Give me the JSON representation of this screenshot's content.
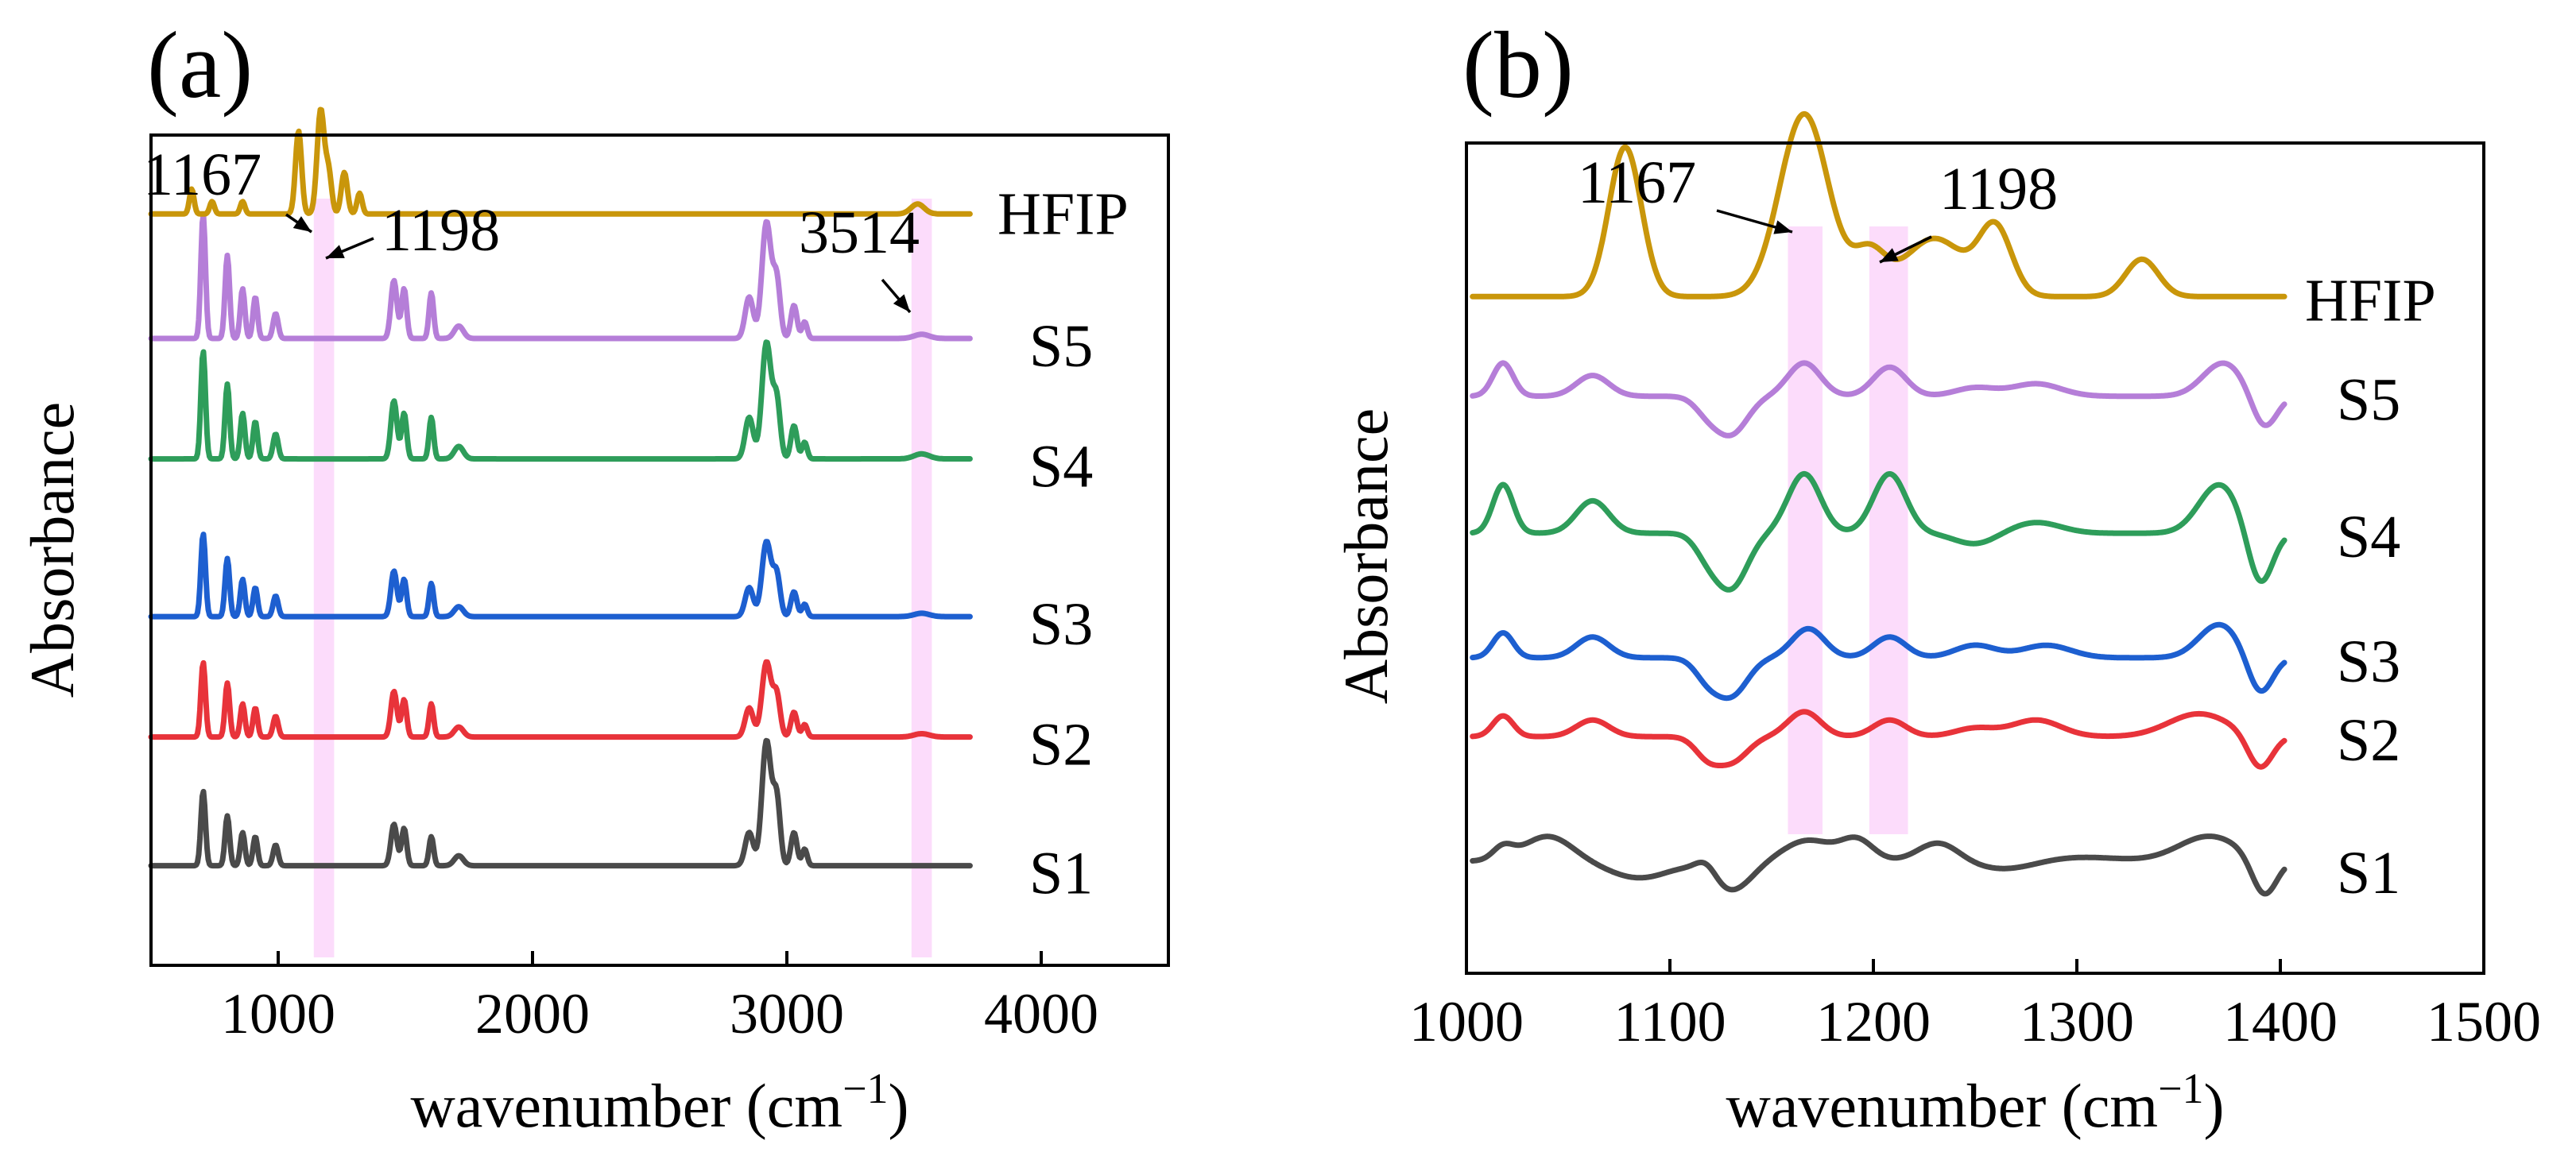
{
  "chart_data": [
    {
      "type": "line",
      "panel_label": "(a)",
      "xlabel": "wavenumber (cm",
      "xlabel_sup": "−1",
      "xlabel_close": ")",
      "ylabel": "Absorbance",
      "xlim": [
        500,
        4500
      ],
      "ylim": [
        0,
        1
      ],
      "xticks": [
        1000,
        2000,
        3000,
        4000
      ],
      "highlight_colour": "#fbd0f9",
      "highlight_bands": [
        [
          1140,
          1220
        ],
        [
          3490,
          3570
        ]
      ],
      "series": [
        {
          "name": "S1",
          "color": "#4a4a4a",
          "baseline": 0.12,
          "peaks": [
            [
              705,
              0.09,
              9
            ],
            [
              800,
              0.06,
              9
            ],
            [
              860,
              0.04,
              9
            ],
            [
              910,
              0.035,
              9
            ],
            [
              990,
              0.025,
              10
            ],
            [
              1455,
              0.05,
              12
            ],
            [
              1495,
              0.045,
              10
            ],
            [
              1602,
              0.035,
              9
            ],
            [
              1710,
              0.012,
              18
            ],
            [
              2852,
              0.04,
              16
            ],
            [
              2920,
              0.15,
              18
            ],
            [
              2960,
              0.08,
              14
            ],
            [
              3028,
              0.04,
              12
            ],
            [
              3070,
              0.02,
              10
            ]
          ]
        },
        {
          "name": "S2",
          "color": "#e8333a",
          "baseline": 0.275,
          "peaks": [
            [
              705,
              0.09,
              9
            ],
            [
              800,
              0.065,
              9
            ],
            [
              860,
              0.04,
              9
            ],
            [
              910,
              0.035,
              9
            ],
            [
              990,
              0.025,
              10
            ],
            [
              1455,
              0.055,
              12
            ],
            [
              1495,
              0.045,
              10
            ],
            [
              1602,
              0.04,
              9
            ],
            [
              1710,
              0.012,
              18
            ],
            [
              2852,
              0.035,
              16
            ],
            [
              2920,
              0.09,
              18
            ],
            [
              2960,
              0.05,
              14
            ],
            [
              3028,
              0.03,
              12
            ],
            [
              3070,
              0.015,
              10
            ],
            [
              3530,
              0.004,
              30
            ]
          ]
        },
        {
          "name": "S3",
          "color": "#1d5fd0",
          "baseline": 0.42,
          "peaks": [
            [
              705,
              0.1,
              9
            ],
            [
              800,
              0.07,
              9
            ],
            [
              860,
              0.045,
              9
            ],
            [
              910,
              0.035,
              9
            ],
            [
              990,
              0.025,
              10
            ],
            [
              1455,
              0.055,
              12
            ],
            [
              1495,
              0.045,
              10
            ],
            [
              1602,
              0.04,
              9
            ],
            [
              1710,
              0.012,
              18
            ],
            [
              2852,
              0.035,
              16
            ],
            [
              2920,
              0.09,
              18
            ],
            [
              2960,
              0.05,
              14
            ],
            [
              3028,
              0.03,
              12
            ],
            [
              3070,
              0.015,
              10
            ],
            [
              3530,
              0.004,
              30
            ]
          ]
        },
        {
          "name": "S4",
          "color": "#2e9d5a",
          "baseline": 0.61,
          "peaks": [
            [
              705,
              0.13,
              9
            ],
            [
              800,
              0.09,
              9
            ],
            [
              860,
              0.055,
              9
            ],
            [
              910,
              0.045,
              9
            ],
            [
              990,
              0.03,
              10
            ],
            [
              1455,
              0.07,
              12
            ],
            [
              1495,
              0.055,
              10
            ],
            [
              1602,
              0.05,
              9
            ],
            [
              1710,
              0.015,
              18
            ],
            [
              2852,
              0.05,
              16
            ],
            [
              2920,
              0.14,
              18
            ],
            [
              2960,
              0.07,
              14
            ],
            [
              3028,
              0.04,
              12
            ],
            [
              3070,
              0.02,
              10
            ],
            [
              3530,
              0.006,
              30
            ]
          ]
        },
        {
          "name": "S5",
          "color": "#b57ed8",
          "baseline": 0.755,
          "peaks": [
            [
              705,
              0.15,
              9
            ],
            [
              800,
              0.1,
              9
            ],
            [
              860,
              0.06,
              9
            ],
            [
              910,
              0.05,
              9
            ],
            [
              990,
              0.03,
              10
            ],
            [
              1455,
              0.07,
              12
            ],
            [
              1495,
              0.06,
              10
            ],
            [
              1602,
              0.055,
              9
            ],
            [
              1710,
              0.015,
              18
            ],
            [
              2852,
              0.05,
              16
            ],
            [
              2920,
              0.14,
              18
            ],
            [
              2960,
              0.07,
              14
            ],
            [
              3028,
              0.04,
              12
            ],
            [
              3070,
              0.02,
              10
            ],
            [
              3530,
              0.005,
              30
            ]
          ]
        },
        {
          "name": "HFIP",
          "color": "#c9960a",
          "baseline": 0.905,
          "peaks": [
            [
              660,
              0.03,
              9
            ],
            [
              740,
              0.015,
              9
            ],
            [
              860,
              0.015,
              9
            ],
            [
              1080,
              0.1,
              12
            ],
            [
              1167,
              0.125,
              14
            ],
            [
              1198,
              0.05,
              12
            ],
            [
              1260,
              0.05,
              12
            ],
            [
              1320,
              0.025,
              10
            ],
            [
              3514,
              0.012,
              26
            ]
          ]
        }
      ],
      "annotations": [
        {
          "label": "1167",
          "x": 1167,
          "series": "HFIP"
        },
        {
          "label": "1198",
          "x": 1198,
          "series": "HFIP"
        },
        {
          "label": "3514",
          "x": 3514,
          "series": "HFIP"
        }
      ]
    },
    {
      "type": "line",
      "panel_label": "(b)",
      "xlabel": "wavenumber (cm",
      "xlabel_sup": "−1",
      "xlabel_close": ")",
      "ylabel": "Absorbance",
      "xlim": [
        1000,
        1500
      ],
      "ylim": [
        0,
        1
      ],
      "xticks": [
        1000,
        1100,
        1200,
        1300,
        1400,
        1500
      ],
      "x_data_range": [
        1003,
        1402
      ],
      "highlight_colour": "#fbd0f9",
      "highlight_bands": [
        [
          1158,
          1175
        ],
        [
          1198,
          1217
        ]
      ],
      "series": [
        {
          "name": "S1",
          "color": "#4a4a4a",
          "baseline": 0.135,
          "amp": 0.05,
          "peaks": [
            [
              1018,
              0.3,
              5
            ],
            [
              1040,
              0.6,
              12
            ],
            [
              1085,
              -0.4,
              15
            ],
            [
              1118,
              0.3,
              5
            ],
            [
              1130,
              -0.7,
              10
            ],
            [
              1168,
              0.5,
              12
            ],
            [
              1192,
              0.5,
              8
            ],
            [
              1232,
              0.45,
              10
            ],
            [
              1265,
              -0.2,
              15
            ],
            [
              1300,
              0.1,
              20
            ],
            [
              1365,
              0.6,
              15
            ],
            [
              1392,
              -0.9,
              6
            ]
          ]
        },
        {
          "name": "S2",
          "color": "#e8333a",
          "baseline": 0.285,
          "amp": 0.05,
          "peaks": [
            [
              1018,
              0.5,
              5
            ],
            [
              1062,
              0.4,
              8
            ],
            [
              1118,
              -0.4,
              6
            ],
            [
              1130,
              -0.6,
              8
            ],
            [
              1166,
              0.6,
              8
            ],
            [
              1208,
              0.4,
              8
            ],
            [
              1250,
              0.2,
              10
            ],
            [
              1280,
              0.4,
              12
            ],
            [
              1360,
              0.55,
              15
            ],
            [
              1390,
              -0.8,
              6
            ]
          ]
        },
        {
          "name": "S3",
          "color": "#1d5fd0",
          "baseline": 0.38,
          "amp": 0.05,
          "peaks": [
            [
              1018,
              0.6,
              5
            ],
            [
              1062,
              0.5,
              8
            ],
            [
              1118,
              -0.4,
              6
            ],
            [
              1130,
              -0.9,
              8
            ],
            [
              1168,
              0.7,
              8
            ],
            [
              1208,
              0.5,
              8
            ],
            [
              1250,
              0.3,
              10
            ],
            [
              1285,
              0.3,
              12
            ],
            [
              1370,
              0.8,
              10
            ],
            [
              1390,
              -0.9,
              6
            ]
          ]
        },
        {
          "name": "S4",
          "color": "#2e9d5a",
          "baseline": 0.53,
          "amp": 0.065,
          "peaks": [
            [
              1018,
              0.9,
              5
            ],
            [
              1062,
              0.6,
              8
            ],
            [
              1118,
              -0.3,
              6
            ],
            [
              1130,
              -1.0,
              8
            ],
            [
              1166,
              1.1,
              8
            ],
            [
              1208,
              1.1,
              8
            ],
            [
              1250,
              -0.2,
              10
            ],
            [
              1280,
              0.2,
              12
            ],
            [
              1370,
              0.9,
              10
            ],
            [
              1390,
              -1.0,
              6
            ]
          ]
        },
        {
          "name": "S5",
          "color": "#b57ed8",
          "baseline": 0.695,
          "amp": 0.05,
          "peaks": [
            [
              1018,
              0.8,
              5
            ],
            [
              1062,
              0.5,
              8
            ],
            [
              1118,
              -0.3,
              6
            ],
            [
              1130,
              -0.9,
              8
            ],
            [
              1166,
              0.8,
              8
            ],
            [
              1208,
              0.7,
              8
            ],
            [
              1250,
              0.2,
              10
            ],
            [
              1280,
              0.3,
              12
            ],
            [
              1372,
              0.8,
              10
            ],
            [
              1392,
              -0.8,
              6
            ]
          ]
        },
        {
          "name": "HFIP",
          "color": "#c9960a",
          "baseline": 0.815,
          "amp": 1.0,
          "peaks": [
            [
              1078,
              0.18,
              8
            ],
            [
              1166,
              0.22,
              12
            ],
            [
              1198,
              0.05,
              8
            ],
            [
              1230,
              0.07,
              15
            ],
            [
              1260,
              0.08,
              8
            ],
            [
              1332,
              0.045,
              8
            ]
          ]
        }
      ],
      "annotations": [
        {
          "label": "1167",
          "x": 1166,
          "series": "HFIP"
        },
        {
          "label": "1198",
          "x": 1200,
          "series": "HFIP"
        }
      ]
    }
  ]
}
